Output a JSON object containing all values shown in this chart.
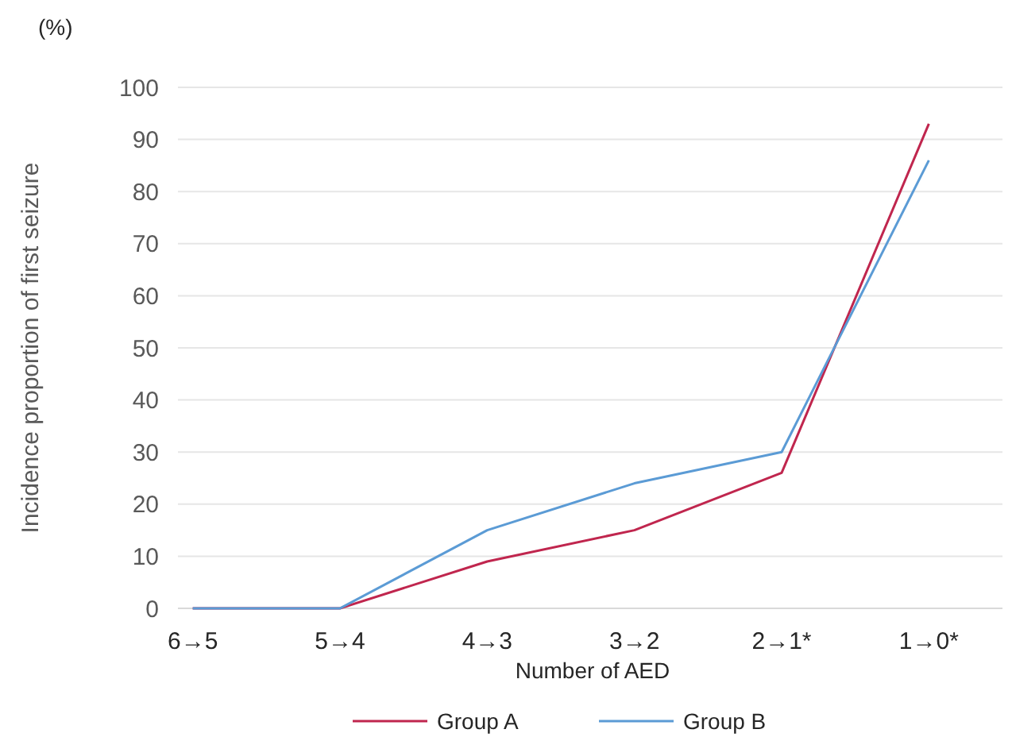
{
  "chart_data": {
    "type": "line",
    "xlabel": "Number of AED",
    "ylabel": "Incidence proportion of first seizure",
    "annotations": [
      "(%)"
    ],
    "categories": [
      "6→5",
      "5→4",
      "4→3",
      "3→2",
      "2→1*",
      "1→0*"
    ],
    "series": [
      {
        "name": "Group A",
        "color": "#c0264e",
        "values": [
          0,
          0,
          9,
          15,
          26,
          93
        ]
      },
      {
        "name": "Group B",
        "color": "#5b9bd5",
        "values": [
          0,
          0,
          15,
          24,
          30,
          86
        ]
      }
    ],
    "ylim": [
      0,
      100
    ],
    "yticks": [
      0,
      10,
      20,
      30,
      40,
      50,
      60,
      70,
      80,
      90,
      100
    ],
    "grid": "y",
    "legend": "bottom",
    "marker": "none",
    "line_style": "solid"
  }
}
